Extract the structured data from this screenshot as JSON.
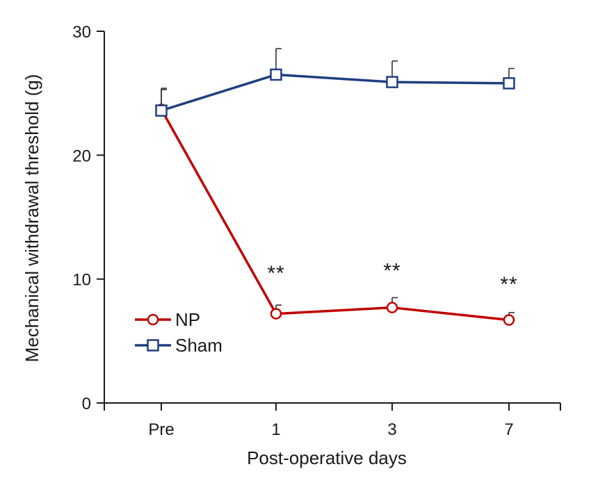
{
  "chart_data": {
    "type": "line",
    "categories": [
      "Pre",
      "1",
      "3",
      "7"
    ],
    "xlabel": "Post-operative days",
    "ylabel": "Mechanical withdrawal threshold  (g)",
    "ylim": [
      0,
      30
    ],
    "yticks": [
      0,
      10,
      20,
      30
    ],
    "grid": false,
    "legend_position": "lower-left",
    "series": [
      {
        "name": "NP",
        "color": "#c00000",
        "marker": "circle",
        "values": [
          23.7,
          7.2,
          7.7,
          6.7
        ],
        "errors": [
          1.6,
          0.7,
          0.8,
          0.6
        ]
      },
      {
        "name": "Sham",
        "color": "#1f3f7f",
        "marker": "square",
        "values": [
          23.6,
          26.5,
          25.9,
          25.8
        ],
        "errors": [
          1.8,
          2.1,
          1.7,
          1.2
        ]
      }
    ],
    "annotations": [
      {
        "category": "1",
        "value": 10.6,
        "text": "**"
      },
      {
        "category": "3",
        "value": 10.8,
        "text": "**"
      },
      {
        "category": "7",
        "value": 9.7,
        "text": "**"
      }
    ]
  }
}
